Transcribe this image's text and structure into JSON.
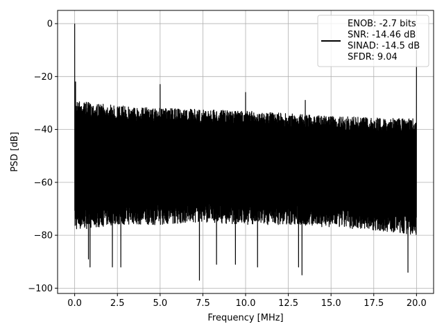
{
  "chart_data": {
    "type": "line",
    "title": "",
    "xlabel": "Frequency [MHz]",
    "ylabel": "PSD [dB]",
    "xlim": [
      -1,
      21
    ],
    "ylim": [
      -102,
      5
    ],
    "xticks": [
      0.0,
      2.5,
      5.0,
      7.5,
      10.0,
      12.5,
      15.0,
      17.5,
      20.0
    ],
    "xtick_labels": [
      "0.0",
      "2.5",
      "5.0",
      "7.5",
      "10.0",
      "12.5",
      "15.0",
      "17.5",
      "20.0"
    ],
    "yticks": [
      0,
      -20,
      -40,
      -60,
      -80,
      -100
    ],
    "ytick_labels": [
      "0",
      "−20",
      "−40",
      "−60",
      "−80",
      "−100"
    ],
    "grid": true,
    "legend_position": "top-right",
    "line_color": "#000000",
    "legend": {
      "entries": [
        "ENOB: -2.7 bits",
        "SNR: -14.46 dB",
        "SINAD: -14.5 dB",
        "SFDR: 9.04"
      ]
    },
    "series": [
      {
        "x_start": 0.0,
        "x_end": 20.0,
        "noise_ceiling_points": [
          [
            0.1,
            -29
          ],
          [
            1.0,
            -30
          ],
          [
            2.5,
            -31
          ],
          [
            5.0,
            -32
          ],
          [
            7.5,
            -32.5
          ],
          [
            10.0,
            -33
          ],
          [
            12.5,
            -34
          ],
          [
            15.0,
            -35
          ],
          [
            17.5,
            -35.5
          ],
          [
            20.0,
            -36
          ]
        ],
        "noise_floor_points": [
          [
            0.1,
            -76
          ],
          [
            2.5,
            -74
          ],
          [
            5.0,
            -74
          ],
          [
            7.5,
            -73
          ],
          [
            10.0,
            -74
          ],
          [
            12.5,
            -74
          ],
          [
            15.0,
            -75
          ],
          [
            17.5,
            -76
          ],
          [
            20.0,
            -78
          ]
        ],
        "peaks": [
          {
            "x": 0.0,
            "y": 0
          },
          {
            "x": 0.05,
            "y": -22
          },
          {
            "x": 5.0,
            "y": -23
          },
          {
            "x": 10.0,
            "y": -26
          },
          {
            "x": 13.5,
            "y": -29
          },
          {
            "x": 20.0,
            "y": -10
          }
        ],
        "dips": [
          {
            "x": 0.8,
            "y": -89
          },
          {
            "x": 0.9,
            "y": -92
          },
          {
            "x": 2.2,
            "y": -92
          },
          {
            "x": 2.7,
            "y": -92
          },
          {
            "x": 7.3,
            "y": -97
          },
          {
            "x": 8.3,
            "y": -91
          },
          {
            "x": 9.4,
            "y": -91
          },
          {
            "x": 10.7,
            "y": -92
          },
          {
            "x": 13.1,
            "y": -92
          },
          {
            "x": 13.3,
            "y": -95
          },
          {
            "x": 19.5,
            "y": -94
          }
        ]
      }
    ]
  }
}
